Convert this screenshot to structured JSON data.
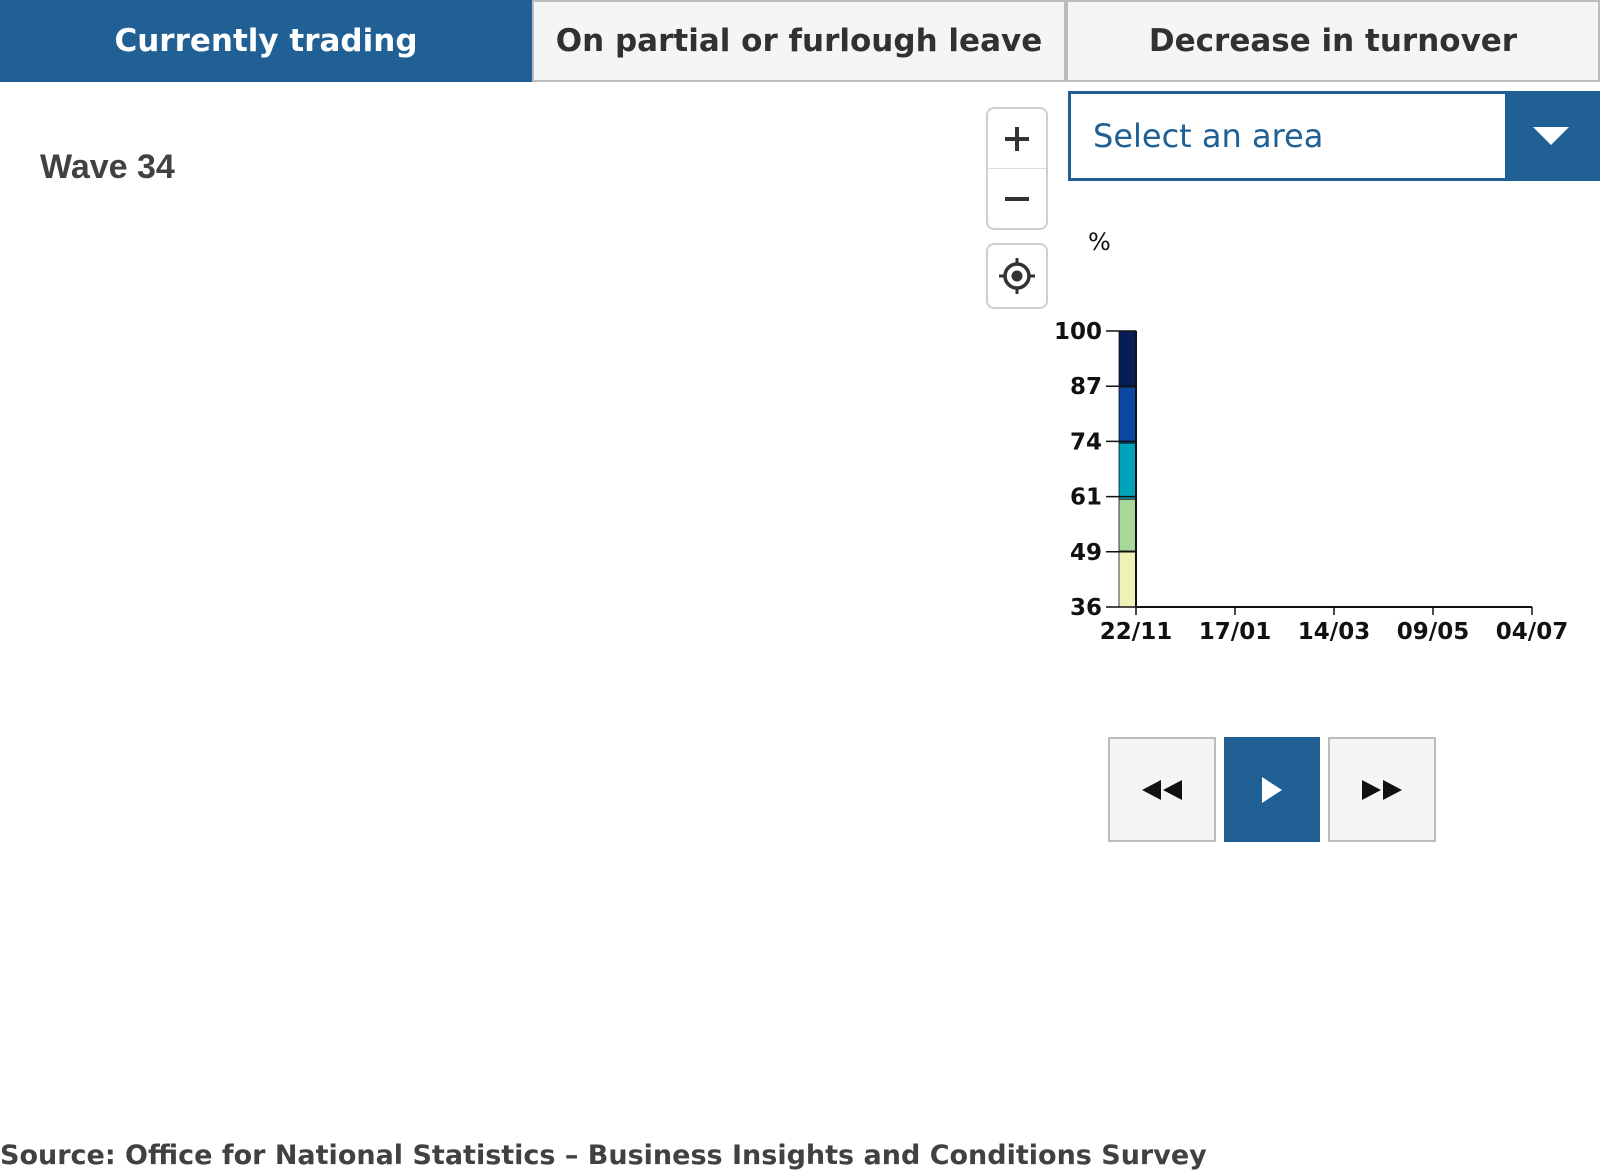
{
  "tabs": [
    {
      "label": "Currently trading",
      "active": true
    },
    {
      "label": "On partial or furlough leave",
      "active": false
    },
    {
      "label": "Decrease in turnover",
      "active": false
    }
  ],
  "wave_title": "Wave 34",
  "map_controls": {
    "zoom_in_icon": "plus-icon",
    "zoom_out_icon": "minus-icon",
    "locate_icon": "crosshair-icon"
  },
  "area_select": {
    "label": "Select an area",
    "arrow_icon": "caret-down-icon"
  },
  "chart_data": {
    "type": "bar",
    "ylabel": "%",
    "y_ticks": [
      "100",
      "87",
      "74",
      "61",
      "49",
      "36"
    ],
    "ylim": [
      36,
      100
    ],
    "x_ticks": [
      "22/11",
      "17/01",
      "14/03",
      "09/05",
      "04/07"
    ],
    "legend_bins": [
      {
        "from": 36,
        "to": 49,
        "color": "#eef2b9"
      },
      {
        "from": 49,
        "to": 61,
        "color": "#a8d898"
      },
      {
        "from": 61,
        "to": 74,
        "color": "#00a3ba"
      },
      {
        "from": 74,
        "to": 87,
        "color": "#0b47a1"
      },
      {
        "from": 87,
        "to": 100,
        "color": "#081d58"
      }
    ]
  },
  "playback": {
    "back_icon": "rewind-icon",
    "play_icon": "play-icon",
    "forward_icon": "fast-forward-icon"
  },
  "source": "Source: Office for National Statistics – Business Insights and Conditions Survey",
  "colors": {
    "accent": "#206095",
    "tab_inactive_bg": "#f5f5f6",
    "text_dark": "#414042"
  }
}
